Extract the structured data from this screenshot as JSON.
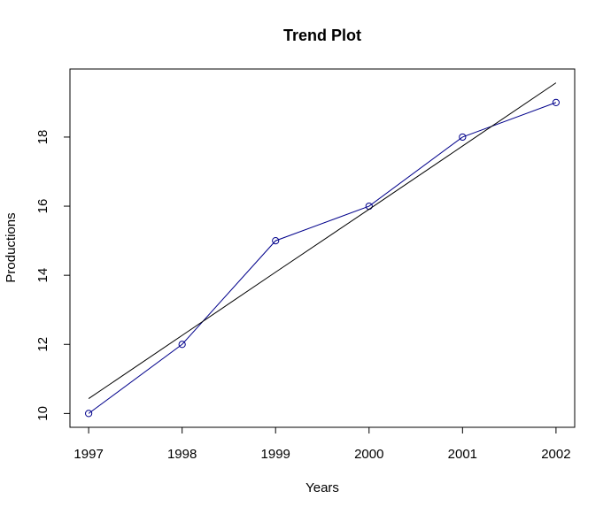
{
  "chart_data": {
    "type": "line",
    "title": "Trend Plot",
    "xlabel": "Years",
    "ylabel": "Productions",
    "x": [
      1997,
      1998,
      1999,
      2000,
      2001,
      2002
    ],
    "series": [
      {
        "values": [
          10,
          12,
          15,
          16,
          18,
          19
        ],
        "color": "#00008b",
        "marker": "open-circle"
      },
      {
        "values": [
          10.43,
          12.26,
          14.09,
          15.91,
          17.74,
          19.57
        ],
        "color": "#000000",
        "marker": "none"
      }
    ],
    "x_ticks": [
      "1997",
      "1998",
      "1999",
      "2000",
      "2001",
      "2002"
    ],
    "y_ticks": [
      "10",
      "12",
      "14",
      "16",
      "18"
    ],
    "xlim": [
      1996.8,
      2002.2
    ],
    "ylim": [
      9.6,
      19.97
    ],
    "grid": false,
    "legend": "none"
  }
}
